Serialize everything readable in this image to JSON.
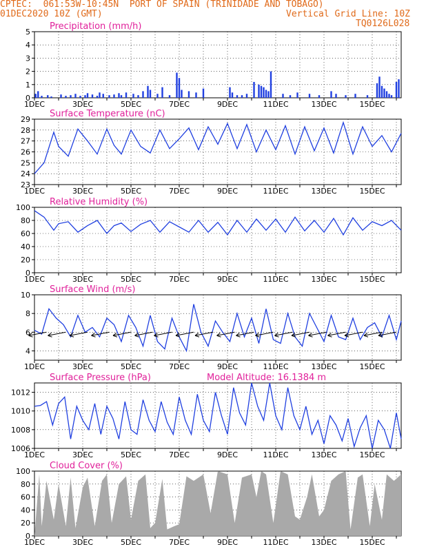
{
  "header": {
    "line1": "CPTEC:  061:53W-10:45N  PORT OF SPAIN (TRINIDADE AND TOBAGO)",
    "line2": "01DEC2020 10Z (GMT)",
    "grid_note": "Vertical Grid Line: 10Z",
    "run_id": "TQ0126L028"
  },
  "colors": {
    "header": "#e06a1a",
    "title": "#e0209a",
    "line": "#1f3fe0",
    "bar": "#1f3fe0",
    "cloud": "#a9a9a9"
  },
  "x_axis": {
    "tick_labels": [
      "1DEC",
      "3DEC",
      "5DEC",
      "7DEC",
      "9DEC",
      "11DEC",
      "13DEC",
      "15DEC"
    ],
    "tick_days": [
      0,
      2,
      4,
      6,
      8,
      10,
      12,
      14
    ],
    "range_days": [
      0,
      15.2
    ],
    "vertical_grid": "10Z daily"
  },
  "chart_data": [
    {
      "type": "bar",
      "title": "Precipitation (mm/h)",
      "ylim": [
        0,
        5
      ],
      "yticks": [
        0,
        1,
        2,
        3,
        4,
        5
      ],
      "x": [
        0.05,
        0.15,
        0.3,
        0.55,
        0.7,
        1.1,
        1.3,
        1.5,
        1.7,
        1.9,
        2.1,
        2.2,
        2.4,
        2.6,
        2.7,
        2.85,
        3.1,
        3.3,
        3.5,
        3.6,
        3.8,
        4.1,
        4.3,
        4.5,
        4.7,
        4.8,
        5.1,
        5.3,
        5.6,
        5.9,
        6.0,
        6.1,
        6.4,
        6.7,
        7.0,
        8.1,
        8.2,
        8.4,
        8.6,
        8.8,
        9.1,
        9.3,
        9.4,
        9.5,
        9.6,
        9.7,
        9.8,
        10.3,
        10.6,
        10.9,
        11.4,
        11.8,
        12.3,
        12.5,
        12.9,
        13.3,
        13.8,
        14.2,
        14.3,
        14.4,
        14.5,
        14.6,
        14.7,
        14.8,
        15.0,
        15.1
      ],
      "values": [
        0.3,
        0.5,
        0.15,
        0.2,
        0.1,
        0.25,
        0.15,
        0.2,
        0.3,
        0.15,
        0.2,
        0.35,
        0.25,
        0.15,
        0.4,
        0.3,
        0.2,
        0.25,
        0.35,
        0.2,
        0.4,
        0.3,
        0.2,
        0.5,
        0.9,
        0.6,
        0.3,
        0.8,
        0.2,
        1.9,
        1.5,
        0.6,
        0.5,
        0.4,
        0.7,
        0.8,
        0.4,
        0.2,
        0.2,
        0.3,
        1.2,
        1.0,
        0.9,
        0.8,
        0.6,
        0.5,
        2.0,
        0.3,
        0.2,
        0.4,
        0.3,
        0.2,
        0.5,
        0.3,
        0.2,
        0.3,
        0.2,
        1.1,
        1.6,
        0.9,
        0.7,
        0.5,
        0.3,
        0.2,
        1.2,
        1.4
      ]
    },
    {
      "type": "line",
      "title": "Surface Temperature (nC)",
      "ylim": [
        23,
        29
      ],
      "yticks": [
        23,
        24,
        25,
        26,
        27,
        28,
        29
      ],
      "x": [
        0,
        0.4,
        0.8,
        1.0,
        1.4,
        1.8,
        2.2,
        2.6,
        3.0,
        3.3,
        3.6,
        4.0,
        4.4,
        4.8,
        5.2,
        5.6,
        6.0,
        6.4,
        6.8,
        7.2,
        7.6,
        8.0,
        8.4,
        8.8,
        9.2,
        9.6,
        10.0,
        10.4,
        10.8,
        11.2,
        11.6,
        12.0,
        12.4,
        12.8,
        13.2,
        13.6,
        14.0,
        14.4,
        14.8,
        15.2
      ],
      "values": [
        24.0,
        25.0,
        27.8,
        26.5,
        25.6,
        28.1,
        27.0,
        25.8,
        28.1,
        26.6,
        25.8,
        28.0,
        26.5,
        25.9,
        28.0,
        26.3,
        27.2,
        28.2,
        26.2,
        28.3,
        26.7,
        28.6,
        26.3,
        28.5,
        26.0,
        28.0,
        26.2,
        28.4,
        25.8,
        28.3,
        26.1,
        28.2,
        25.9,
        28.7,
        25.8,
        28.3,
        26.5,
        27.5,
        26.0,
        27.7
      ]
    },
    {
      "type": "line",
      "title": "Relative Humidity (%)",
      "ylim": [
        0,
        100
      ],
      "yticks": [
        0,
        20,
        40,
        60,
        80,
        100
      ],
      "x": [
        0,
        0.4,
        0.8,
        1.0,
        1.4,
        1.8,
        2.2,
        2.6,
        3.0,
        3.3,
        3.6,
        4.0,
        4.4,
        4.8,
        5.2,
        5.6,
        6.0,
        6.4,
        6.8,
        7.2,
        7.6,
        8.0,
        8.4,
        8.8,
        9.2,
        9.6,
        10.0,
        10.4,
        10.8,
        11.2,
        11.6,
        12.0,
        12.4,
        12.8,
        13.2,
        13.6,
        14.0,
        14.4,
        14.8,
        15.2
      ],
      "values": [
        95,
        85,
        65,
        75,
        78,
        62,
        72,
        80,
        60,
        72,
        76,
        63,
        74,
        80,
        62,
        78,
        70,
        62,
        80,
        62,
        77,
        58,
        80,
        62,
        82,
        65,
        82,
        62,
        85,
        64,
        80,
        62,
        83,
        58,
        84,
        65,
        78,
        72,
        80,
        65
      ]
    },
    {
      "type": "line",
      "title": "Surface Wind (m/s)",
      "ylim": [
        3,
        10
      ],
      "yticks": [
        4,
        6,
        8,
        10
      ],
      "x": [
        0,
        0.3,
        0.6,
        0.9,
        1.2,
        1.5,
        1.8,
        2.1,
        2.4,
        2.7,
        3.0,
        3.3,
        3.6,
        3.9,
        4.2,
        4.5,
        4.8,
        5.1,
        5.4,
        5.7,
        6.0,
        6.3,
        6.6,
        6.9,
        7.2,
        7.5,
        7.8,
        8.1,
        8.4,
        8.7,
        9.0,
        9.3,
        9.6,
        9.9,
        10.2,
        10.5,
        10.8,
        11.1,
        11.4,
        11.7,
        12.0,
        12.3,
        12.6,
        12.9,
        13.2,
        13.5,
        13.8,
        14.1,
        14.4,
        14.7,
        15.0,
        15.2
      ],
      "values": [
        6.2,
        5.8,
        8.5,
        7.5,
        6.8,
        5.5,
        7.8,
        6.0,
        6.5,
        5.5,
        7.5,
        6.8,
        5.0,
        7.8,
        6.5,
        4.5,
        7.8,
        5.0,
        4.2,
        7.5,
        5.5,
        4.0,
        9.0,
        6.0,
        4.5,
        7.2,
        6.0,
        5.0,
        8.0,
        5.5,
        7.5,
        4.8,
        8.5,
        5.2,
        4.8,
        8.0,
        5.5,
        4.5,
        8.0,
        6.5,
        5.0,
        7.8,
        5.5,
        5.2,
        7.5,
        5.2,
        6.5,
        7.0,
        5.5,
        7.8,
        5.2,
        7.2
      ],
      "arrows_x": [
        0.5,
        1.3,
        2.2,
        3.1,
        4.0,
        4.9,
        5.7,
        6.6,
        7.4,
        8.3,
        9.1,
        9.9,
        10.7,
        11.4,
        12.1,
        12.9,
        13.6,
        14.4,
        15.0
      ]
    },
    {
      "type": "line",
      "title": "Surface Pressure (hPa)",
      "annotation": "Model Altitude: 16.1384 m",
      "ylim": [
        1006,
        1013
      ],
      "yticks": [
        1006,
        1008,
        1010,
        1012
      ],
      "x": [
        0,
        0.25,
        0.5,
        0.75,
        1.0,
        1.25,
        1.5,
        1.75,
        2.0,
        2.25,
        2.5,
        2.75,
        3.0,
        3.25,
        3.5,
        3.75,
        4.0,
        4.25,
        4.5,
        4.75,
        5.0,
        5.25,
        5.5,
        5.75,
        6.0,
        6.25,
        6.5,
        6.75,
        7.0,
        7.25,
        7.5,
        7.75,
        8.0,
        8.25,
        8.5,
        8.75,
        9.0,
        9.25,
        9.5,
        9.75,
        10.0,
        10.25,
        10.5,
        10.75,
        11.0,
        11.25,
        11.5,
        11.75,
        12.0,
        12.25,
        12.5,
        12.75,
        13.0,
        13.25,
        13.5,
        13.75,
        14.0,
        14.25,
        14.5,
        14.75,
        15.0,
        15.2
      ],
      "values": [
        1010.5,
        1010.6,
        1011.0,
        1008.5,
        1010.8,
        1011.5,
        1007.0,
        1010.5,
        1009.0,
        1008.0,
        1010.8,
        1007.5,
        1010.5,
        1009.2,
        1007.0,
        1011.0,
        1008.0,
        1007.5,
        1011.2,
        1009.0,
        1007.8,
        1011.0,
        1008.8,
        1007.5,
        1011.5,
        1009.0,
        1007.5,
        1011.8,
        1009.0,
        1007.8,
        1012.0,
        1009.5,
        1007.5,
        1012.5,
        1009.8,
        1008.5,
        1013.0,
        1010.5,
        1009.0,
        1013.0,
        1009.5,
        1008.0,
        1012.5,
        1009.5,
        1008.0,
        1010.5,
        1007.5,
        1009.0,
        1006.5,
        1009.5,
        1008.5,
        1006.8,
        1009.2,
        1006.2,
        1008.2,
        1009.5,
        1006.0,
        1009.0,
        1008.0,
        1006.0,
        1009.8,
        1007.0
      ]
    },
    {
      "type": "area",
      "title": "Cloud Cover (%)",
      "ylim": [
        0,
        100
      ],
      "yticks": [
        0,
        20,
        40,
        60,
        80,
        100
      ],
      "x": [
        0,
        0.2,
        0.3,
        0.5,
        0.8,
        1.0,
        1.3,
        1.5,
        1.7,
        2.0,
        2.2,
        2.5,
        2.8,
        3.0,
        3.2,
        3.5,
        3.8,
        4.0,
        4.3,
        4.6,
        4.8,
        5.0,
        5.3,
        5.5,
        5.8,
        6.0,
        6.3,
        6.6,
        7.0,
        7.3,
        7.6,
        8.0,
        8.3,
        8.6,
        9.0,
        9.2,
        9.4,
        9.6,
        9.9,
        10.2,
        10.5,
        10.8,
        11.0,
        11.3,
        11.5,
        11.8,
        12.0,
        12.3,
        12.6,
        12.9,
        13.1,
        13.4,
        13.6,
        13.9,
        14.1,
        14.4,
        14.6,
        14.9,
        15.2
      ],
      "values": [
        0,
        95,
        15,
        85,
        25,
        80,
        15,
        90,
        12,
        75,
        90,
        15,
        85,
        95,
        20,
        80,
        92,
        25,
        85,
        95,
        12,
        20,
        88,
        10,
        15,
        18,
        92,
        85,
        95,
        35,
        100,
        95,
        20,
        90,
        95,
        60,
        100,
        95,
        20,
        100,
        95,
        30,
        25,
        60,
        95,
        30,
        40,
        85,
        95,
        100,
        10,
        90,
        95,
        15,
        80,
        25,
        95,
        85,
        95
      ]
    }
  ]
}
